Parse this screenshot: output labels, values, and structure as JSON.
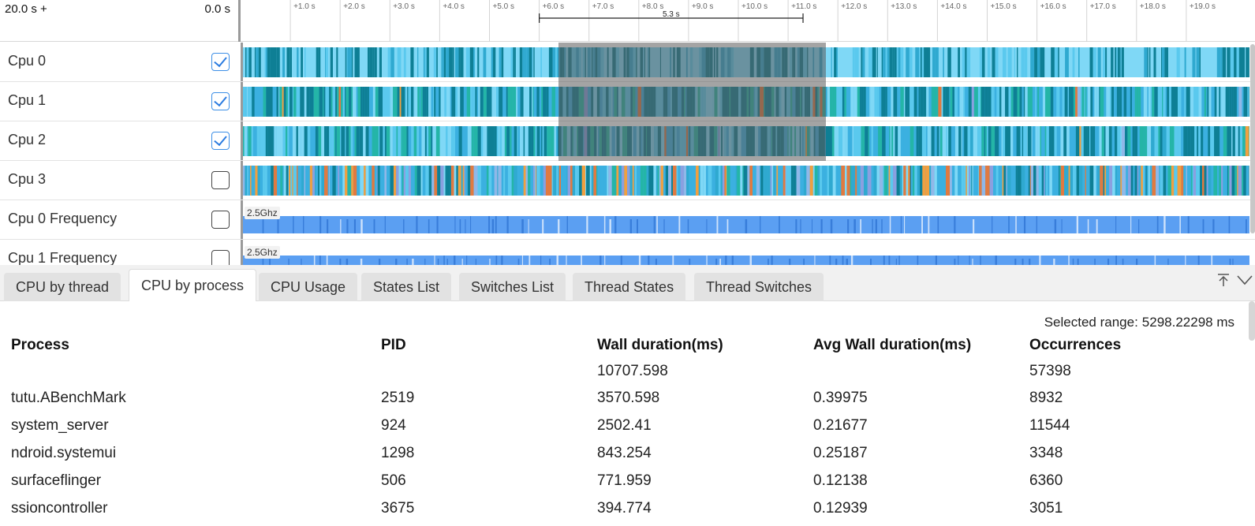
{
  "timeline": {
    "range_start": "20.0 s +",
    "range_offset": "0.0 s",
    "ticks": [
      "+1.0 s",
      "+2.0 s",
      "+3.0 s",
      "+4.0 s",
      "+5.0 s",
      "+6.0 s",
      "+7.0 s",
      "+8.0 s",
      "+9.0 s",
      "+10.0 s",
      "+11.0 s",
      "+12.0 s",
      "+13.0 s",
      "+14.0 s",
      "+15.0 s",
      "+16.0 s",
      "+17.0 s",
      "+18.0 s",
      "+19.0 s"
    ],
    "selection_label": "5.3 s",
    "selection_start_s": 6.0,
    "selection_end_s": 11.3,
    "tracks": [
      {
        "label": "Cpu 0",
        "checked": true
      },
      {
        "label": "Cpu 1",
        "checked": true
      },
      {
        "label": "Cpu 2",
        "checked": true
      },
      {
        "label": "Cpu 3",
        "checked": false
      },
      {
        "label": "Cpu 0 Frequency",
        "checked": false,
        "freq_label": "2.5Ghz"
      },
      {
        "label": "Cpu 1 Frequency",
        "checked": false,
        "freq_label": "2.5Ghz"
      }
    ],
    "colors": {
      "slice_palette": [
        "#7fd8f6",
        "#5ac9ee",
        "#2fa9d0",
        "#0e7f95",
        "#24b5a7",
        "#3bb0e0",
        "#8aa0e0",
        "#f0a040",
        "#e07a40",
        "#8fb8e8"
      ],
      "freq_fill": "#5b9ff2",
      "freq_dark": "#2a6fd0"
    }
  },
  "tabs": [
    {
      "label": "CPU by thread",
      "active": false
    },
    {
      "label": "CPU by process",
      "active": true
    },
    {
      "label": "CPU Usage",
      "active": false
    },
    {
      "label": "States List",
      "active": false
    },
    {
      "label": "Switches List",
      "active": false
    },
    {
      "label": "Thread States",
      "active": false
    },
    {
      "label": "Thread Switches",
      "active": false
    }
  ],
  "panel": {
    "selected_range_label": "Selected range:",
    "selected_range_value": "5298.22298 ms",
    "columns": [
      "Process",
      "PID",
      "Wall duration(ms)",
      "Avg Wall duration(ms)",
      "Occurrences"
    ],
    "totals": {
      "wall": "10707.598",
      "occurrences": "57398"
    },
    "rows": [
      {
        "process": "tutu.ABenchMark",
        "pid": "2519",
        "wall": "3570.598",
        "avg": "0.39975",
        "occ": "8932"
      },
      {
        "process": "system_server",
        "pid": "924",
        "wall": "2502.41",
        "avg": "0.21677",
        "occ": "11544"
      },
      {
        "process": "ndroid.systemui",
        "pid": "1298",
        "wall": "843.254",
        "avg": "0.25187",
        "occ": "3348"
      },
      {
        "process": "surfaceflinger",
        "pid": "506",
        "wall": "771.959",
        "avg": "0.12138",
        "occ": "6360"
      },
      {
        "process": "ssioncontroller",
        "pid": "3675",
        "wall": "394.774",
        "avg": "0.12939",
        "occ": "3051"
      }
    ]
  }
}
